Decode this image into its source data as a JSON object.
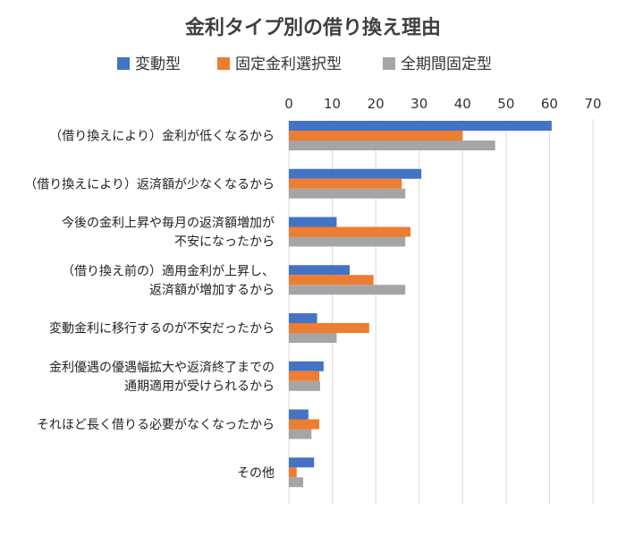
{
  "chart_data": {
    "type": "bar",
    "orientation": "horizontal",
    "title": "金利タイプ別の借り換え理由",
    "xlim": [
      0,
      70
    ],
    "xticks": [
      0,
      10,
      20,
      30,
      40,
      50,
      60,
      70
    ],
    "grid": true,
    "legend_position": "top",
    "categories": [
      [
        "（借り換えにより）金利が低くなるから"
      ],
      [
        "（借り換えにより）返済額が少なくなるから"
      ],
      [
        "今後の金利上昇や毎月の返済額増加が",
        "不安になったから"
      ],
      [
        "（借り換え前の）適用金利が上昇し、",
        "返済額が増加するから"
      ],
      [
        "変動金利に移行するのが不安だったから"
      ],
      [
        "金利優遇の優遇幅拡大や返済終了までの",
        "通期適用が受けられるから"
      ],
      [
        "それほど長く借りる必要がなくなったから"
      ],
      [
        "その他"
      ]
    ],
    "series": [
      {
        "name": "変動型",
        "color": "#4472c4",
        "values": [
          60.5,
          30.5,
          11,
          14,
          6.5,
          8,
          4.5,
          5.8
        ]
      },
      {
        "name": "固定金利選択型",
        "color": "#ed7d31",
        "values": [
          40,
          26,
          28,
          19.5,
          18.5,
          7,
          7,
          1.8
        ]
      },
      {
        "name": "全期間固定型",
        "color": "#a5a5a5",
        "values": [
          47.5,
          26.8,
          26.8,
          26.8,
          11,
          7.2,
          5.2,
          3.3
        ]
      }
    ]
  }
}
